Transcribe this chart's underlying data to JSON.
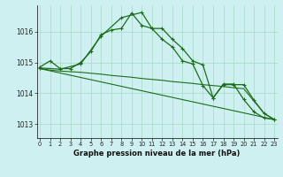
{
  "title": "Graphe pression niveau de la mer (hPa)",
  "background_color": "#cff0f0",
  "grid_color": "#aaddcc",
  "line_color": "#1a6e1a",
  "x_ticks": [
    0,
    1,
    2,
    3,
    4,
    5,
    6,
    7,
    8,
    9,
    10,
    11,
    12,
    13,
    14,
    15,
    16,
    17,
    18,
    19,
    20,
    21,
    22,
    23
  ],
  "y_ticks": [
    1013,
    1014,
    1015,
    1016
  ],
  "ylim": [
    1012.55,
    1016.85
  ],
  "xlim": [
    -0.3,
    23.3
  ],
  "series": [
    {
      "x": [
        0,
        1,
        2,
        3,
        4,
        5,
        6,
        7,
        8,
        9,
        10,
        11,
        12,
        13,
        14,
        15,
        16,
        17,
        18,
        19,
        20,
        21,
        22,
        23
      ],
      "y": [
        1014.85,
        1015.05,
        1014.8,
        1014.8,
        1015.0,
        1015.35,
        1015.9,
        1016.05,
        1016.1,
        1016.6,
        1016.2,
        1016.1,
        1015.75,
        1015.5,
        1015.05,
        1014.95,
        1014.25,
        1013.85,
        1014.3,
        1014.3,
        1013.8,
        1013.4,
        1013.2,
        1013.15
      ],
      "markers": true
    },
    {
      "x": [
        0,
        1,
        2,
        3,
        4,
        5,
        6,
        7,
        8,
        9,
        10,
        11,
        12,
        13,
        14,
        15,
        16,
        17,
        18,
        19,
        20,
        21,
        22,
        23
      ],
      "y": [
        1014.8,
        1014.75,
        1014.72,
        1014.7,
        1014.68,
        1014.65,
        1014.62,
        1014.58,
        1014.55,
        1014.52,
        1014.48,
        1014.45,
        1014.42,
        1014.38,
        1014.35,
        1014.32,
        1014.28,
        1014.25,
        1014.22,
        1014.18,
        1014.15,
        1013.75,
        1013.35,
        1013.15
      ],
      "markers": false
    },
    {
      "x": [
        0,
        23
      ],
      "y": [
        1014.8,
        1013.15
      ],
      "markers": false
    },
    {
      "x": [
        0,
        2,
        4,
        6,
        8,
        10,
        11,
        12,
        13,
        14,
        15,
        16,
        17,
        18,
        19,
        20,
        21,
        22,
        23
      ],
      "y": [
        1014.82,
        1014.78,
        1014.95,
        1015.85,
        1016.45,
        1016.62,
        1016.1,
        1016.1,
        1015.75,
        1015.45,
        1015.05,
        1014.92,
        1013.85,
        1014.28,
        1014.28,
        1014.28,
        1013.78,
        1013.35,
        1013.15
      ],
      "markers": true
    }
  ]
}
